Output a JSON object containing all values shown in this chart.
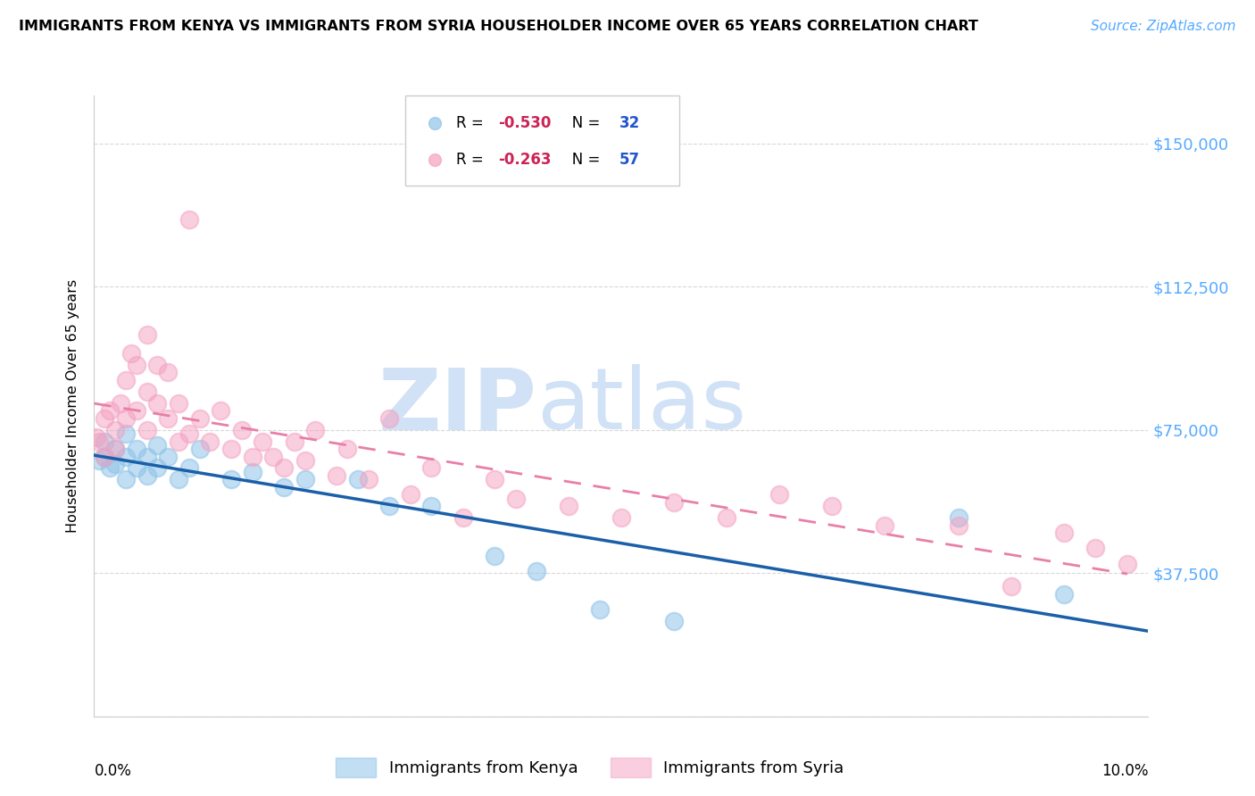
{
  "title": "IMMIGRANTS FROM KENYA VS IMMIGRANTS FROM SYRIA HOUSEHOLDER INCOME OVER 65 YEARS CORRELATION CHART",
  "source": "Source: ZipAtlas.com",
  "ylabel": "Householder Income Over 65 years",
  "xlim": [
    0.0,
    0.1
  ],
  "ylim": [
    0,
    162500
  ],
  "yticks": [
    0,
    37500,
    75000,
    112500,
    150000
  ],
  "ytick_labels": [
    "",
    "$37,500",
    "$75,000",
    "$112,500",
    "$150,000"
  ],
  "kenya_R": "-0.530",
  "kenya_N": "32",
  "syria_R": "-0.263",
  "syria_N": "57",
  "kenya_color": "#90c4e8",
  "syria_color": "#f4a0c0",
  "kenya_line_color": "#1a5fa8",
  "syria_line_color": "#e87fa8",
  "watermark_text": "ZIPatlas",
  "watermark_color": "#ccdff5",
  "axis_label_color": "#55aaff",
  "kenya_x": [
    0.0005,
    0.001,
    0.001,
    0.0015,
    0.002,
    0.002,
    0.003,
    0.003,
    0.003,
    0.004,
    0.004,
    0.005,
    0.005,
    0.006,
    0.006,
    0.007,
    0.008,
    0.009,
    0.01,
    0.013,
    0.015,
    0.018,
    0.02,
    0.025,
    0.028,
    0.032,
    0.038,
    0.042,
    0.048,
    0.055,
    0.082,
    0.092
  ],
  "kenya_y": [
    67000,
    68000,
    72000,
    65000,
    70000,
    66000,
    74000,
    68000,
    62000,
    70000,
    65000,
    68000,
    63000,
    71000,
    65000,
    68000,
    62000,
    65000,
    70000,
    62000,
    64000,
    60000,
    62000,
    62000,
    55000,
    55000,
    42000,
    38000,
    28000,
    25000,
    52000,
    32000
  ],
  "syria_x": [
    0.0002,
    0.0005,
    0.001,
    0.001,
    0.0015,
    0.002,
    0.002,
    0.0025,
    0.003,
    0.003,
    0.0035,
    0.004,
    0.004,
    0.005,
    0.005,
    0.005,
    0.006,
    0.006,
    0.007,
    0.007,
    0.008,
    0.008,
    0.009,
    0.009,
    0.01,
    0.011,
    0.012,
    0.013,
    0.014,
    0.015,
    0.016,
    0.017,
    0.018,
    0.019,
    0.02,
    0.021,
    0.023,
    0.024,
    0.026,
    0.028,
    0.03,
    0.032,
    0.035,
    0.038,
    0.04,
    0.045,
    0.05,
    0.055,
    0.06,
    0.065,
    0.07,
    0.075,
    0.082,
    0.087,
    0.092,
    0.095,
    0.098
  ],
  "syria_y": [
    73000,
    72000,
    78000,
    68000,
    80000,
    75000,
    70000,
    82000,
    88000,
    78000,
    95000,
    92000,
    80000,
    100000,
    85000,
    75000,
    92000,
    82000,
    90000,
    78000,
    82000,
    72000,
    130000,
    74000,
    78000,
    72000,
    80000,
    70000,
    75000,
    68000,
    72000,
    68000,
    65000,
    72000,
    67000,
    75000,
    63000,
    70000,
    62000,
    78000,
    58000,
    65000,
    52000,
    62000,
    57000,
    55000,
    52000,
    56000,
    52000,
    58000,
    55000,
    50000,
    50000,
    34000,
    48000,
    44000,
    40000
  ]
}
